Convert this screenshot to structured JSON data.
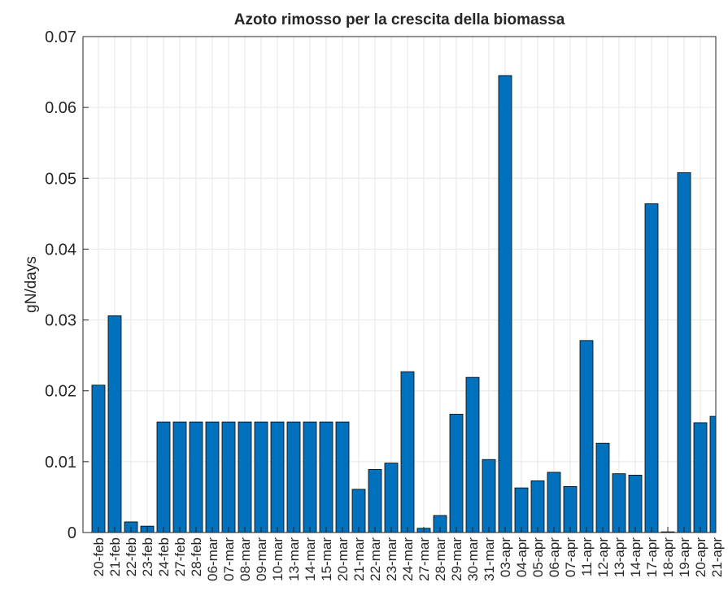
{
  "chart_data": {
    "type": "bar",
    "title": "Azoto rimosso per la crescita della biomassa",
    "y_label": "gN/days",
    "categories": [
      "20-feb",
      "21-feb",
      "22-feb",
      "23-feb",
      "24-feb",
      "27-feb",
      "28-feb",
      "06-mar",
      "07-mar",
      "08-mar",
      "09-mar",
      "10-mar",
      "13-mar",
      "14-mar",
      "15-mar",
      "20-mar",
      "21-mar",
      "22-mar",
      "23-mar",
      "24-mar",
      "27-mar",
      "28-mar",
      "29-mar",
      "30-mar",
      "31-mar",
      "03-apr",
      "04-apr",
      "05-apr",
      "06-apr",
      "07-apr",
      "11-apr",
      "12-apr",
      "13-apr",
      "14-apr",
      "17-apr",
      "18-apr",
      "19-apr",
      "20-apr",
      "21-apr"
    ],
    "values": [
      0.0208,
      0.0306,
      0.0015,
      0.0009,
      0.0156,
      0.0156,
      0.0156,
      0.0156,
      0.0156,
      0.0156,
      0.0156,
      0.0156,
      0.0156,
      0.0156,
      0.0156,
      0.0156,
      0.0061,
      0.0089,
      0.0098,
      0.0227,
      0.0006,
      0.0024,
      0.0167,
      0.0219,
      0.0103,
      0.0645,
      0.0063,
      0.0073,
      0.0085,
      0.0065,
      0.0271,
      0.0126,
      0.0083,
      0.0081,
      0.0464,
      0.0001,
      0.0508,
      0.0155,
      0.0164
    ],
    "color": "#0072bd",
    "ylim": [
      0,
      0.07
    ],
    "yticks": [
      0,
      0.01,
      0.02,
      0.03,
      0.04,
      0.05,
      0.06,
      0.07
    ],
    "grid": true
  }
}
